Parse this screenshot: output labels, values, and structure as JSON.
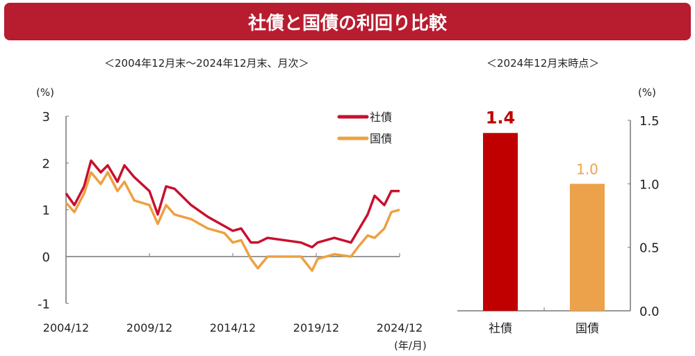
{
  "title": "社債と国債の利回り比較",
  "chart_data": [
    {
      "type": "line",
      "subtitle": "＜2004年12月末～2024年12月末、月次＞",
      "ylabel": "(%)",
      "xlabel": "(年/月)",
      "ylim": [
        -1,
        3
      ],
      "yticks": [
        "3",
        "2",
        "1",
        "0",
        "-1"
      ],
      "xticks": [
        "2004/12",
        "2009/12",
        "2014/12",
        "2019/12",
        "2024/12"
      ],
      "legend": "top-right",
      "x": [
        "2004-12",
        "2005-06",
        "2006-01",
        "2006-06",
        "2007-01",
        "2007-06",
        "2008-01",
        "2008-06",
        "2009-01",
        "2009-12",
        "2010-06",
        "2010-12",
        "2011-06",
        "2012-06",
        "2013-06",
        "2014-06",
        "2014-12",
        "2015-06",
        "2016-01",
        "2016-06",
        "2017-01",
        "2018-01",
        "2019-01",
        "2019-09",
        "2020-01",
        "2021-01",
        "2022-01",
        "2022-06",
        "2023-01",
        "2023-06",
        "2024-01",
        "2024-06",
        "2024-12"
      ],
      "series": [
        {
          "name": "社債",
          "color": "#c8102e",
          "values": [
            1.35,
            1.1,
            1.5,
            2.05,
            1.8,
            1.95,
            1.6,
            1.95,
            1.7,
            1.4,
            0.9,
            1.5,
            1.45,
            1.1,
            0.85,
            0.65,
            0.55,
            0.6,
            0.3,
            0.3,
            0.4,
            0.35,
            0.3,
            0.2,
            0.3,
            0.4,
            0.3,
            0.55,
            0.9,
            1.3,
            1.1,
            1.4,
            1.4
          ]
        },
        {
          "name": "国債",
          "color": "#eea040",
          "values": [
            1.15,
            0.95,
            1.35,
            1.8,
            1.55,
            1.8,
            1.4,
            1.6,
            1.2,
            1.1,
            0.7,
            1.1,
            0.9,
            0.8,
            0.6,
            0.5,
            0.3,
            0.35,
            -0.05,
            -0.25,
            0.0,
            0.0,
            0.0,
            -0.3,
            -0.05,
            0.05,
            0.0,
            0.2,
            0.45,
            0.4,
            0.6,
            0.95,
            1.0
          ]
        }
      ]
    },
    {
      "type": "bar",
      "subtitle": "＜2024年12月末時点＞",
      "ylabel": "(%)",
      "ylim": [
        0,
        1.5
      ],
      "yticks": [
        "1.5",
        "1.0",
        "0.5",
        "0.0"
      ],
      "categories": [
        "社債",
        "国債"
      ],
      "values": [
        1.4,
        1.0
      ],
      "labels": [
        "1.4",
        "1.0"
      ],
      "colors": [
        "#c00000",
        "#eca24a"
      ]
    }
  ]
}
